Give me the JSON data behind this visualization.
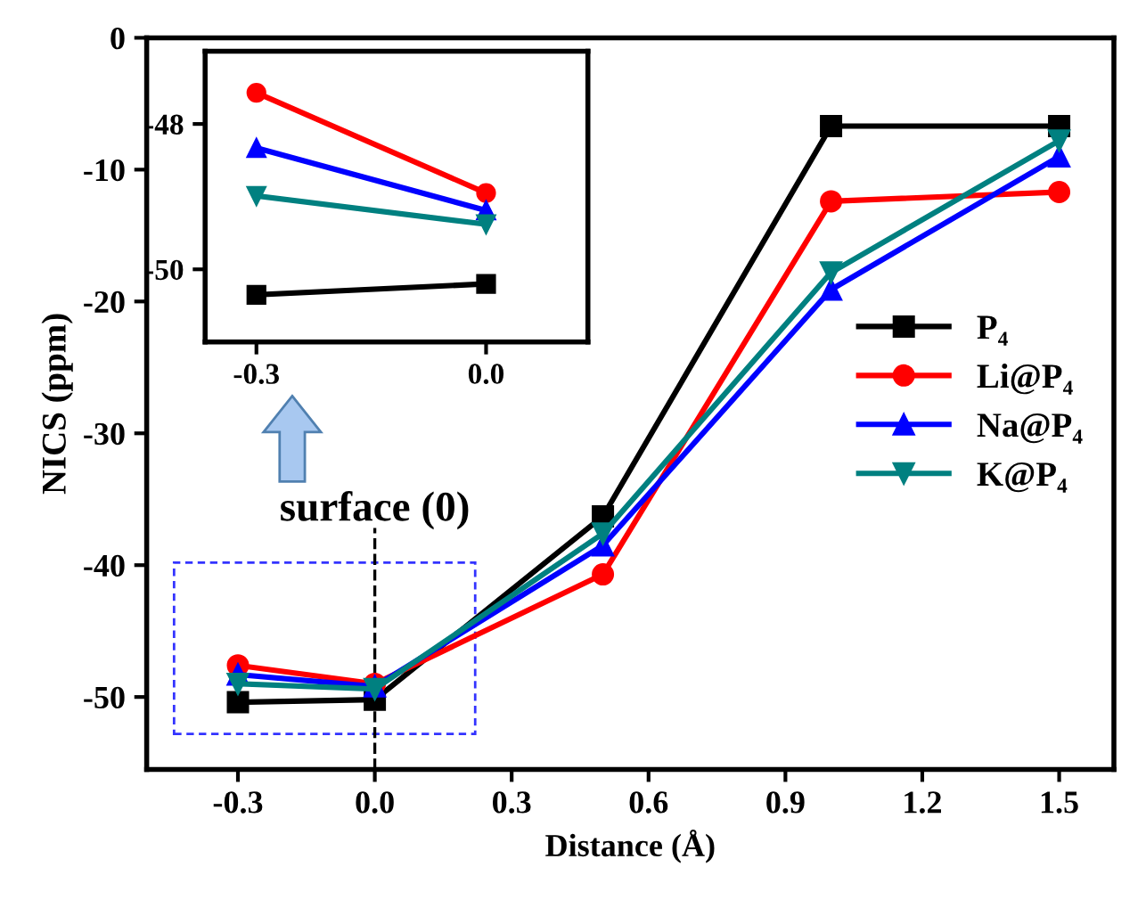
{
  "chart_data": [
    {
      "type": "line",
      "xlabel": "Distance (Å)",
      "ylabel": "NICS (ppm)",
      "x": [
        -0.3,
        0.0,
        0.5,
        1.0,
        1.5
      ],
      "series": [
        {
          "name": "P₄",
          "color": "#000000",
          "marker": "square",
          "values": [
            -50.4,
            -50.2,
            -36.3,
            -6.7,
            -6.7
          ]
        },
        {
          "name": "Li@P₄",
          "color": "#ff0000",
          "marker": "circle",
          "values": [
            -47.6,
            -49.0,
            -40.7,
            -12.4,
            -11.7
          ]
        },
        {
          "name": "Na@P₄",
          "color": "#0000ff",
          "marker": "triangle",
          "values": [
            -48.3,
            -49.2,
            -38.5,
            -19.1,
            -9.0
          ]
        },
        {
          "name": "K@P₄",
          "color": "#008080",
          "marker": "triangle_down",
          "values": [
            -49.0,
            -49.4,
            -37.6,
            -17.8,
            -7.8
          ]
        }
      ],
      "xlim": [
        -0.5,
        1.62
      ],
      "ylim": [
        -55.5,
        0
      ],
      "xticks": [
        -0.3,
        {
          "value": 0.0,
          "label": "0.0"
        },
        0.3,
        0.6,
        0.9,
        1.2,
        1.5
      ],
      "yticks": [
        -50,
        -40,
        -30,
        -20,
        -10,
        0
      ],
      "ref_lines": [
        {
          "axis": "x",
          "value": 0.0,
          "label": "surface (0)",
          "color": "#000000",
          "line_style": "dashed"
        }
      ],
      "legend": "center right",
      "grid": false,
      "line_style": "solid"
    },
    {
      "type": "line",
      "x": [
        -0.3,
        0.0
      ],
      "series": [
        {
          "color": "#000000",
          "marker": "square",
          "values": [
            -50.35,
            -50.2
          ]
        },
        {
          "color": "#ff0000",
          "marker": "circle",
          "values": [
            -47.57,
            -48.95
          ]
        },
        {
          "color": "#0000ff",
          "marker": "triangle",
          "values": [
            -48.33,
            -49.19
          ]
        },
        {
          "color": "#008080",
          "marker": "triangle_down",
          "values": [
            -48.99,
            -49.38
          ]
        }
      ],
      "xlim": [
        -0.367,
        0.133
      ],
      "ylim": [
        -51.0,
        -47.0
      ],
      "xticks": [
        -0.3,
        {
          "value": 0.0,
          "label": "0.0"
        }
      ],
      "yticks": [
        -50,
        -48
      ],
      "grid": false,
      "line_style": "solid"
    }
  ]
}
